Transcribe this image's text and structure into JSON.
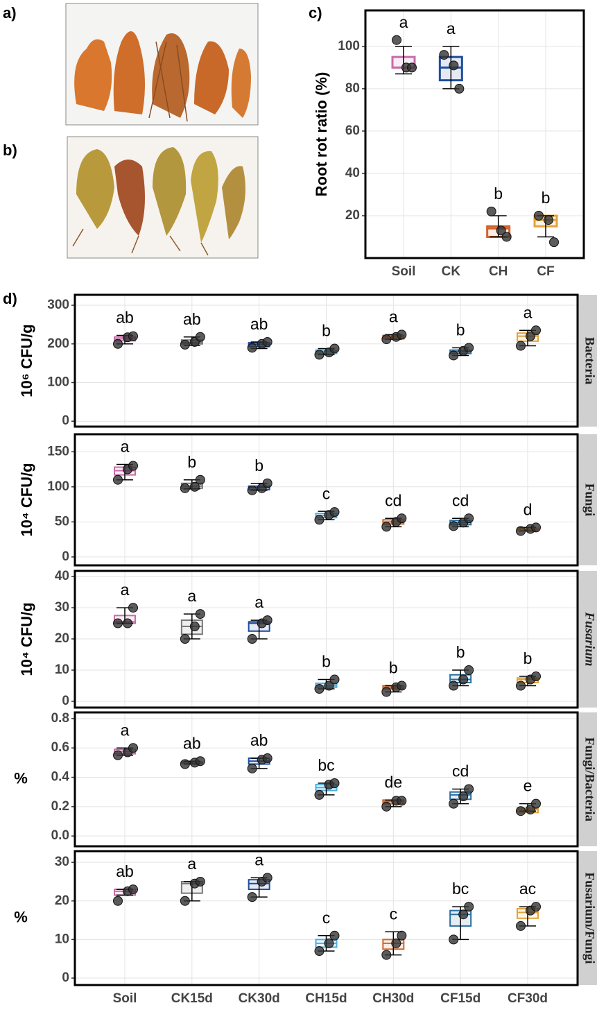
{
  "labels": [
    "a)",
    "b)",
    "c)",
    "d)"
  ],
  "chart_data": [
    {
      "type": "box",
      "ylabel": "Root rot ratio (%)",
      "categories": [
        "Soil",
        "CK",
        "CH",
        "CF"
      ],
      "colors": [
        "#c86ca8",
        "#1f4e9c",
        "#d0652a",
        "#e3a23a"
      ],
      "q1": [
        90,
        84,
        10,
        15
      ],
      "median": [
        90,
        90,
        14,
        18
      ],
      "q3": [
        95,
        95,
        15,
        20
      ],
      "err_low": [
        87,
        80,
        10,
        10
      ],
      "err_high": [
        100,
        100,
        20,
        20
      ],
      "points": [
        [
          103,
          90,
          90
        ],
        [
          96,
          91,
          80
        ],
        [
          22,
          13,
          10
        ],
        [
          20,
          18,
          7.5
        ]
      ],
      "letters": [
        "a",
        "a",
        "b",
        "b"
      ],
      "ylim": [
        0,
        117
      ],
      "yticks": [
        20,
        40,
        60,
        80,
        100
      ],
      "grid": true
    },
    {
      "type": "box",
      "ylabel": "10⁶ CFU/g",
      "strip": "Bacteria",
      "colors": [
        "#c86ca8",
        "#777777",
        "#1f4e9c",
        "#4aaee0",
        "#d0652a",
        "#2a6f9e",
        "#e3a23a"
      ],
      "q1": [
        208,
        200,
        193,
        175,
        213,
        175,
        207
      ],
      "median": [
        213,
        204,
        199,
        180,
        218,
        180,
        220
      ],
      "q3": [
        218,
        210,
        203,
        184,
        222,
        184,
        228
      ],
      "err_low": [
        200,
        196,
        188,
        172,
        212,
        170,
        195
      ],
      "err_high": [
        222,
        218,
        205,
        188,
        224,
        190,
        235
      ],
      "points": [
        [
          200,
          217,
          220
        ],
        [
          198,
          205,
          218
        ],
        [
          190,
          200,
          205
        ],
        [
          172,
          178,
          188
        ],
        [
          212,
          218,
          224
        ],
        [
          170,
          182,
          190
        ],
        [
          195,
          220,
          235
        ]
      ],
      "letters": [
        "ab",
        "ab",
        "ab",
        "b",
        "a",
        "b",
        "a"
      ],
      "ylim": [
        -14,
        327
      ],
      "yticks": [
        0,
        100,
        200,
        300
      ],
      "grid": true
    },
    {
      "type": "box",
      "ylabel": "10⁴ CFU/g",
      "strip": "Fungi",
      "colors": [
        "#c86ca8",
        "#777777",
        "#1f4e9c",
        "#4aaee0",
        "#d0652a",
        "#2a6f9e",
        "#e3a23a"
      ],
      "q1": [
        117,
        98,
        96,
        56,
        47,
        46,
        38
      ],
      "median": [
        123,
        101,
        99,
        59,
        50,
        49,
        40
      ],
      "q3": [
        128,
        105,
        101,
        62,
        53,
        52,
        41
      ],
      "err_low": [
        110,
        97,
        95,
        53,
        43,
        43,
        37
      ],
      "err_high": [
        132,
        110,
        105,
        65,
        55,
        55,
        42
      ],
      "points": [
        [
          110,
          125,
          130
        ],
        [
          98,
          100,
          110
        ],
        [
          95,
          98,
          105
        ],
        [
          53,
          60,
          64
        ],
        [
          43,
          50,
          55
        ],
        [
          44,
          49,
          55
        ],
        [
          37,
          40,
          42
        ]
      ],
      "letters": [
        "a",
        "b",
        "b",
        "c",
        "cd",
        "cd",
        "d"
      ],
      "ylim": [
        -12,
        175
      ],
      "yticks": [
        0,
        50,
        100,
        150
      ],
      "grid": true
    },
    {
      "type": "box",
      "ylabel": "10⁴ CFU/g",
      "strip": "Fusarium",
      "strip_italic": true,
      "colors": [
        "#c86ca8",
        "#777777",
        "#1f4e9c",
        "#4aaee0",
        "#d0652a",
        "#2a6f9e",
        "#e3a23a"
      ],
      "q1": [
        25,
        21.5,
        22.5,
        4.5,
        4,
        6,
        6
      ],
      "median": [
        25.5,
        24,
        25,
        5,
        4.5,
        7,
        7
      ],
      "q3": [
        27.5,
        26,
        25.5,
        5.8,
        5,
        8.5,
        7.5
      ],
      "err_low": [
        25,
        20,
        20,
        4,
        3,
        5,
        5
      ],
      "err_high": [
        30,
        28,
        26,
        7,
        5,
        10,
        8
      ],
      "points": [
        [
          25,
          25,
          30
        ],
        [
          20,
          24,
          28
        ],
        [
          20,
          25,
          26
        ],
        [
          4,
          5,
          7
        ],
        [
          3,
          4.5,
          5
        ],
        [
          5,
          7,
          10
        ],
        [
          5,
          7,
          8
        ]
      ],
      "letters": [
        "a",
        "a",
        "a",
        "b",
        "b",
        "b",
        "b"
      ],
      "ylim": [
        -2,
        41.8
      ],
      "yticks": [
        0,
        10,
        20,
        30,
        40
      ],
      "grid": true
    },
    {
      "type": "box",
      "ylabel": "%",
      "ylabel_rotate": false,
      "strip": "Fungi/Bacteria",
      "colors": [
        "#c86ca8",
        "#777777",
        "#1f4e9c",
        "#4aaee0",
        "#d0652a",
        "#2a6f9e",
        "#e3a23a"
      ],
      "q1": [
        0.56,
        0.495,
        0.49,
        0.31,
        0.22,
        0.25,
        0.16
      ],
      "median": [
        0.575,
        0.5,
        0.51,
        0.33,
        0.235,
        0.28,
        0.18
      ],
      "q3": [
        0.59,
        0.505,
        0.53,
        0.35,
        0.245,
        0.3,
        0.19
      ],
      "err_low": [
        0.55,
        0.49,
        0.46,
        0.28,
        0.2,
        0.22,
        0.17
      ],
      "err_high": [
        0.6,
        0.51,
        0.53,
        0.36,
        0.245,
        0.32,
        0.22
      ],
      "points": [
        [
          0.55,
          0.57,
          0.6
        ],
        [
          0.49,
          0.5,
          0.51
        ],
        [
          0.46,
          0.52,
          0.53
        ],
        [
          0.28,
          0.35,
          0.36
        ],
        [
          0.2,
          0.24,
          0.24
        ],
        [
          0.22,
          0.27,
          0.32
        ],
        [
          0.17,
          0.18,
          0.22
        ]
      ],
      "letters": [
        "a",
        "ab",
        "ab",
        "bc",
        "de",
        "cd",
        "e"
      ],
      "ylim": [
        -0.07,
        0.842
      ],
      "yticks": [
        {
          "value": 0,
          "label": "0.0"
        },
        0.2,
        0.4,
        0.6,
        0.8
      ],
      "grid": true
    },
    {
      "type": "box",
      "ylabel": "%",
      "ylabel_rotate": false,
      "strip": "Fusarium/Fungi",
      "categories": [
        "Soil",
        "CK15d",
        "CK30d",
        "CH15d",
        "CH30d",
        "CF15d",
        "CF30d"
      ],
      "colors": [
        "#c86ca8",
        "#777777",
        "#1f4e9c",
        "#4aaee0",
        "#d0652a",
        "#2a6f9e",
        "#e3a23a"
      ],
      "q1": [
        21.5,
        22,
        23,
        8,
        7.5,
        13.5,
        15.5
      ],
      "median": [
        22.5,
        24.5,
        24.5,
        9,
        9,
        16.5,
        17
      ],
      "q3": [
        23,
        25,
        25.5,
        10,
        10,
        17.5,
        18
      ],
      "err_low": [
        21.5,
        20,
        21,
        7,
        6,
        10,
        13.5
      ],
      "err_high": [
        23,
        25,
        26,
        11,
        12,
        18.5,
        18.5
      ],
      "points": [
        [
          20,
          22.5,
          23
        ],
        [
          20,
          24.5,
          25
        ],
        [
          21,
          25,
          26
        ],
        [
          7,
          9,
          11
        ],
        [
          6,
          9,
          11
        ],
        [
          10,
          16.5,
          18.5
        ],
        [
          13.5,
          17.5,
          18.5
        ]
      ],
      "letters": [
        "ab",
        "a",
        "a",
        "c",
        "c",
        "bc",
        "ac"
      ],
      "ylim": [
        -1.8,
        32.9
      ],
      "yticks": [
        0,
        10,
        20,
        30
      ],
      "grid": true
    }
  ]
}
